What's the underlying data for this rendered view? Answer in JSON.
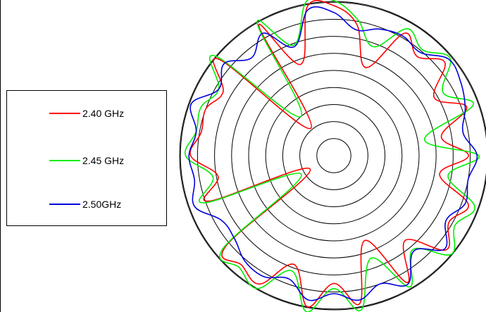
{
  "chart_data": {
    "type": "polar-line",
    "radial_rings": 9,
    "grid": true,
    "legend_position": "left",
    "series": [
      {
        "name": "2.40 GHz",
        "color": "#ff0000",
        "angle_deg": [
          0,
          10,
          20,
          30,
          40,
          50,
          60,
          70,
          80,
          90,
          100,
          110,
          120,
          130,
          140,
          150,
          160,
          170,
          180,
          190,
          200,
          210,
          220,
          230,
          240,
          250,
          260,
          270,
          280,
          290,
          300,
          310,
          320,
          330,
          340,
          350
        ],
        "r": [
          8.8,
          7.8,
          5.5,
          8.3,
          7.6,
          8.5,
          6.8,
          8.3,
          6.4,
          7.9,
          6.3,
          8.4,
          7.8,
          8.6,
          6.5,
          8.6,
          5.3,
          8.8,
          7.5,
          9.0,
          6.8,
          8.7,
          8.4,
          8.3,
          1.6,
          7.8,
          6.9,
          8.4,
          7.9,
          8.0,
          7.5,
          8.8,
          2.1,
          8.8,
          5.7,
          8.9
        ]
      },
      {
        "name": "2.45 GHz",
        "color": "#00ee00",
        "angle_deg": [
          0,
          10,
          20,
          30,
          40,
          50,
          60,
          70,
          80,
          90,
          100,
          110,
          120,
          130,
          140,
          150,
          160,
          170,
          180,
          190,
          200,
          210,
          220,
          230,
          240,
          250,
          260,
          270,
          280,
          290,
          300,
          310,
          320,
          330,
          340,
          350
        ],
        "r": [
          9.1,
          8.1,
          6.8,
          8.6,
          8.1,
          8.9,
          7.4,
          8.7,
          5.4,
          8.5,
          6.8,
          8.8,
          8.2,
          9.0,
          7.2,
          8.9,
          6.4,
          9.2,
          7.8,
          9.3,
          7.2,
          9.0,
          8.6,
          8.5,
          2.2,
          8.1,
          7.2,
          8.7,
          8.2,
          8.3,
          7.8,
          9.1,
          3.0,
          9.0,
          6.9,
          9.2
        ]
      },
      {
        "name": "2.50GHz",
        "color": "#0000dd",
        "angle_deg": [
          0,
          10,
          20,
          30,
          40,
          50,
          60,
          70,
          80,
          90,
          100,
          110,
          120,
          130,
          140,
          150,
          160,
          170,
          180,
          190,
          200,
          210,
          220,
          230,
          240,
          250,
          260,
          270,
          280,
          290,
          300,
          310,
          320,
          330,
          340,
          350
        ],
        "r": [
          8.4,
          7.5,
          7.9,
          8.1,
          7.9,
          8.8,
          8.6,
          8.2,
          7.7,
          8.4,
          8.0,
          8.2,
          7.6,
          8.5,
          7.3,
          8.7,
          8.0,
          8.6,
          8.1,
          8.6,
          7.7,
          8.2,
          8.1,
          7.6,
          7.6,
          8.7,
          8.3,
          8.5,
          8.2,
          8.9,
          7.8,
          8.4,
          7.5,
          8.3,
          6.8,
          8.7
        ]
      }
    ]
  }
}
